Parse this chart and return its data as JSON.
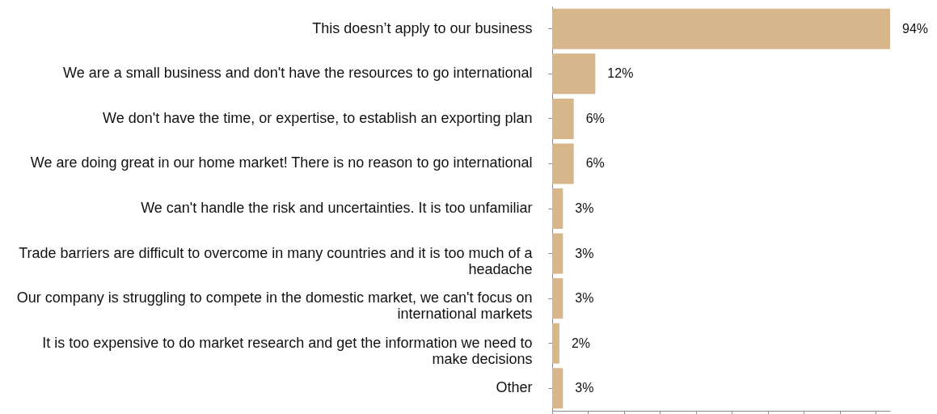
{
  "chart_data": {
    "type": "bar",
    "orientation": "horizontal",
    "categories": [
      "This doesn’t apply to our business",
      "We are a small business and don't have the resources to go international",
      "We don't have the time, or expertise, to establish an exporting plan",
      "We are doing great in our home market! There is no reason to go international",
      "We can't handle the risk and uncertainties. It is too unfamiliar",
      "Trade barriers are difficult to overcome in many countries and it is too much of a headache",
      "Our company is struggling to compete in the domestic market, we can't focus on international markets",
      "It is too expensive to do market research and get the information we need to make decisions",
      "Other"
    ],
    "values": [
      94,
      12,
      6,
      6,
      3,
      3,
      3,
      2,
      3
    ],
    "value_labels": [
      "94%",
      "12%",
      "6%",
      "6%",
      "3%",
      "3%",
      "3%",
      "2%",
      "3%"
    ],
    "color": "#d6b68a"
  }
}
